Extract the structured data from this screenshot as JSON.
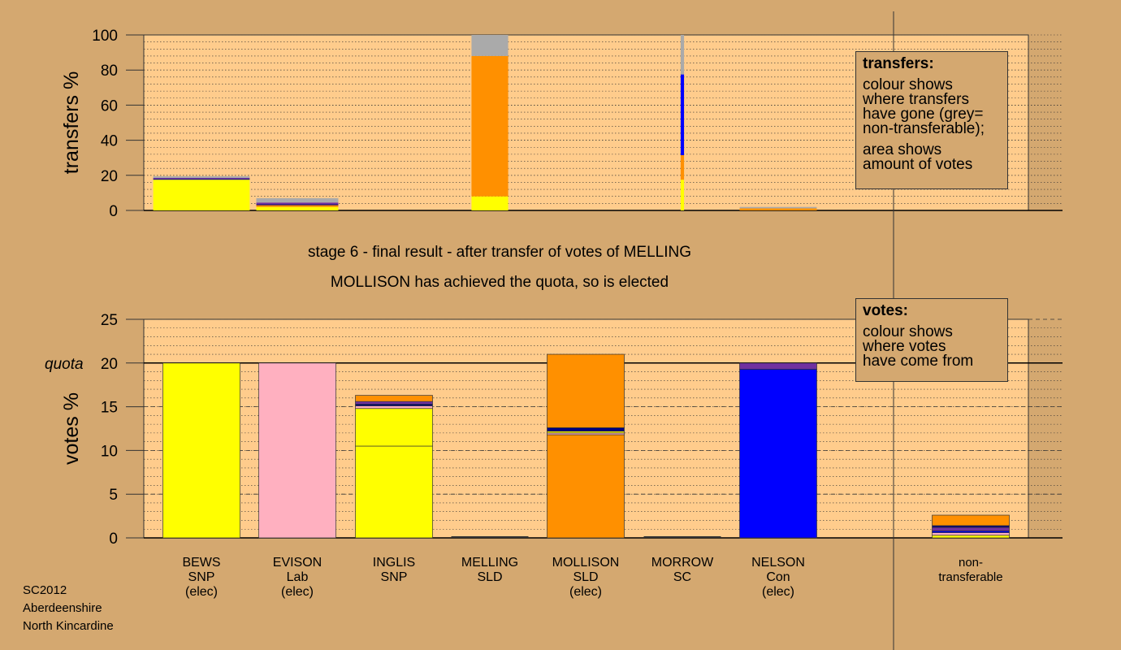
{
  "title_line1": "stage 6 - final result - after transfer of votes of MELLING",
  "title_line2": "MOLLISON has achieved the quota, so is elected",
  "footer": [
    "SC2012",
    "Aberdeenshire",
    "North Kincardine"
  ],
  "colors": {
    "SNP": "#ffff00",
    "Lab": "#ffb0c0",
    "SLD": "#ff9000",
    "Con": "#0000ff",
    "SC": "#7030a0",
    "navy": "#000080",
    "grey": "#aaaaaa",
    "plot_bg": "#ffcc8c",
    "page_bg": "#d4a870"
  },
  "transfers_legend": {
    "title": "transfers:",
    "lines1": [
      "colour shows",
      "where transfers",
      "have gone (grey=",
      "non-transferable);"
    ],
    "lines2": [
      "area shows",
      "amount of votes"
    ]
  },
  "votes_legend": {
    "title": "votes:",
    "lines1": [
      "colour shows",
      "where votes",
      "have come from"
    ]
  },
  "chart_data": [
    {
      "type": "bar",
      "name": "transfers",
      "ylabel": "transfers %",
      "ylim": [
        0,
        100
      ],
      "yticks": [
        0,
        20,
        40,
        60,
        80,
        100
      ],
      "grid": "dotted",
      "bars": [
        {
          "slot": 0,
          "rel_width": 1.0,
          "segments": [
            {
              "color": "SNP",
              "value": 17.5
            },
            {
              "color": "navy",
              "value": 0.5
            },
            {
              "color": "SC",
              "value": 0.5
            },
            {
              "color": "grey",
              "value": 1.0
            }
          ]
        },
        {
          "slot": 1,
          "rel_width": 0.85,
          "segments": [
            {
              "color": "SNP",
              "value": 2.0
            },
            {
              "color": "SLD",
              "value": 1.0
            },
            {
              "color": "navy",
              "value": 0.5
            },
            {
              "color": "SC",
              "value": 1.0
            },
            {
              "color": "grey",
              "value": 2.5
            }
          ]
        },
        {
          "slot": 3,
          "rel_width": 0.38,
          "segments": [
            {
              "color": "SNP",
              "value": 8.0
            },
            {
              "color": "SLD",
              "value": 80.0
            },
            {
              "color": "grey",
              "value": 12.0
            }
          ]
        },
        {
          "slot": 5,
          "rel_width": 0.035,
          "segments": [
            {
              "color": "SNP",
              "value": 17.5
            },
            {
              "color": "SLD",
              "value": 14.0
            },
            {
              "color": "Con",
              "value": 46.0
            },
            {
              "color": "grey",
              "value": 22.5
            }
          ]
        },
        {
          "slot": 6,
          "rel_width": 0.8,
          "segments": [
            {
              "color": "SLD",
              "value": 1.2
            },
            {
              "color": "grey",
              "value": 0.8
            }
          ]
        }
      ]
    },
    {
      "type": "bar",
      "name": "votes",
      "ylabel": "votes %",
      "ylim": [
        0,
        25
      ],
      "yticks": [
        0,
        5,
        10,
        15,
        20,
        25
      ],
      "quota": 20,
      "quota_label": "quota",
      "grid": "dashed",
      "categories": [
        [
          "BEWS",
          "SNP",
          "(elec)"
        ],
        [
          "EVISON",
          "Lab",
          "(elec)"
        ],
        [
          "INGLIS",
          "SNP"
        ],
        [
          "MELLING",
          "SLD"
        ],
        [
          "MOLLISON",
          "SLD",
          "(elec)"
        ],
        [
          "MORROW",
          "SC"
        ],
        [
          "NELSON",
          "Con",
          "(elec)"
        ],
        [
          "non-",
          "transferable"
        ]
      ],
      "bars": [
        {
          "segments": [
            {
              "color": "SNP",
              "value": 20.0
            }
          ]
        },
        {
          "segments": [
            {
              "color": "Lab",
              "value": 20.0
            }
          ]
        },
        {
          "segments": [
            {
              "color": "SNP",
              "value": 10.5
            },
            {
              "color": "SNP",
              "value": 4.3
            },
            {
              "color": "Lab",
              "value": 0.3
            },
            {
              "color": "navy",
              "value": 0.2
            },
            {
              "color": "SC",
              "value": 0.3
            },
            {
              "color": "SLD",
              "value": 0.7
            }
          ]
        },
        {
          "segments": [
            {
              "color": "SLD",
              "value": 0.0
            }
          ]
        },
        {
          "segments": [
            {
              "color": "SLD",
              "value": 11.8
            },
            {
              "color": "Lab",
              "value": 0.2
            },
            {
              "color": "SNP",
              "value": 0.2
            },
            {
              "color": "navy",
              "value": 0.4
            },
            {
              "color": "SLD",
              "value": 8.4
            }
          ]
        },
        {
          "segments": [
            {
              "color": "SC",
              "value": 0.0
            }
          ]
        },
        {
          "segments": [
            {
              "color": "Con",
              "value": 19.3
            },
            {
              "color": "SC",
              "value": 0.7
            }
          ]
        },
        {
          "segments": [
            {
              "color": "SNP",
              "value": 0.3
            },
            {
              "color": "Lab",
              "value": 0.3
            },
            {
              "color": "Con",
              "value": 0.2
            },
            {
              "color": "SC",
              "value": 0.4
            },
            {
              "color": "navy",
              "value": 0.2
            },
            {
              "color": "SLD",
              "value": 1.2
            }
          ]
        }
      ]
    }
  ]
}
